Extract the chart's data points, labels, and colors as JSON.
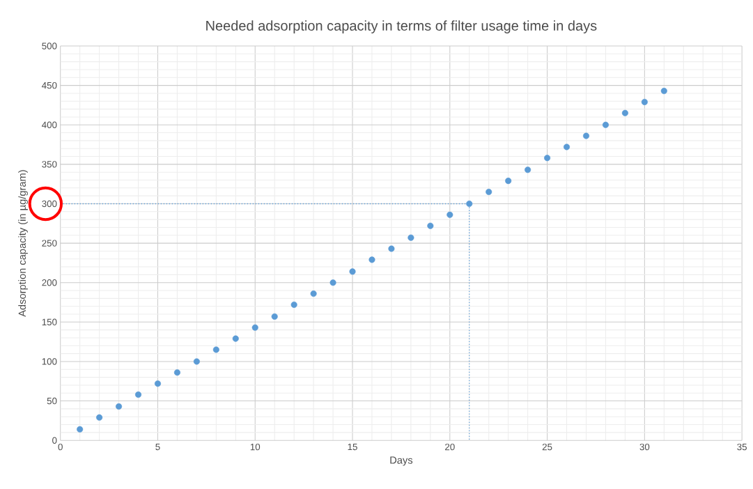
{
  "chart_data": {
    "type": "scatter",
    "title": "Needed adsorption capacity in terms of filter usage time in days",
    "xlabel": "Days",
    "ylabel": "Adsorption capacity (in µg/gram)",
    "xlim": [
      0,
      35
    ],
    "xticks": [
      0,
      5,
      10,
      15,
      20,
      25,
      30,
      35
    ],
    "ylim": [
      0,
      500
    ],
    "yticks": [
      0,
      50,
      100,
      150,
      200,
      250,
      300,
      350,
      400,
      450,
      500
    ],
    "grid": true,
    "series": [
      {
        "marker": "circle",
        "color": "#5b9bd5",
        "x": [
          1,
          2,
          3,
          4,
          5,
          6,
          7,
          8,
          9,
          10,
          11,
          12,
          13,
          14,
          15,
          16,
          17,
          18,
          19,
          20,
          21,
          22,
          23,
          24,
          25,
          26,
          27,
          28,
          29,
          30,
          31
        ],
        "values": [
          14,
          29,
          43,
          58,
          72,
          86,
          100,
          115,
          129,
          143,
          157,
          172,
          186,
          200,
          214,
          229,
          243,
          257,
          272,
          286,
          300,
          315,
          329,
          343,
          358,
          372,
          386,
          400,
          415,
          429,
          443
        ]
      },
      {
        "type": "line",
        "marker": "none",
        "line_style": "dotted",
        "color": "#5b9bd5",
        "x": [
          0,
          21,
          21
        ],
        "values": [
          300,
          300,
          0
        ]
      }
    ]
  }
}
